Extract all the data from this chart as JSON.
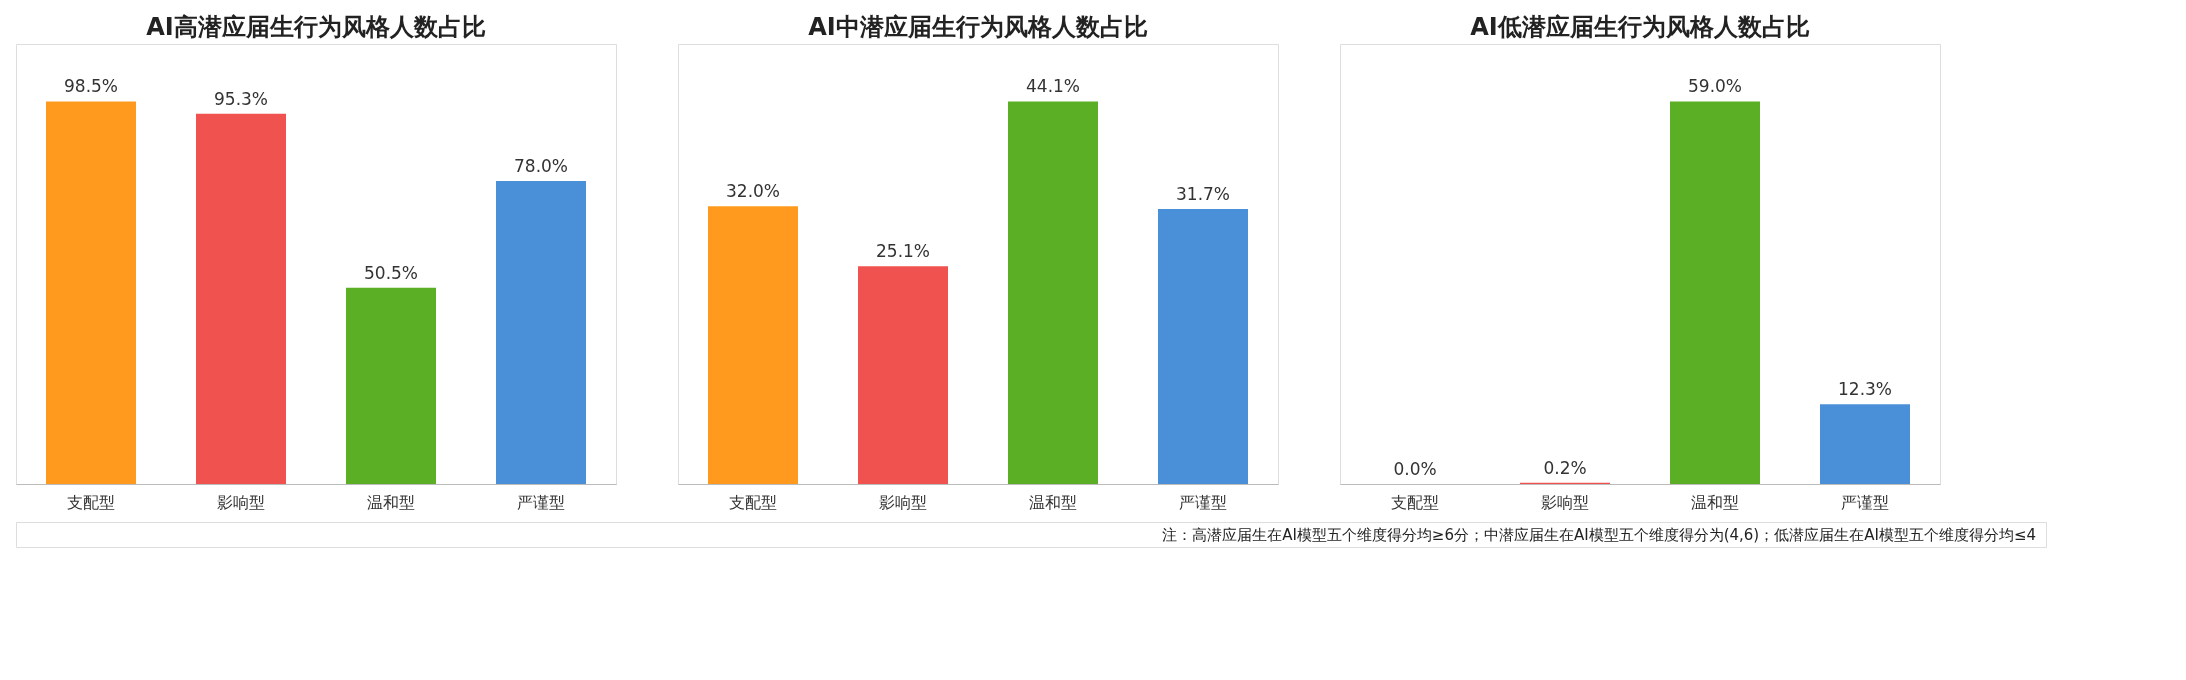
{
  "chart_data": [
    {
      "type": "bar",
      "title": "AI高潜应届生行为风格人数占比",
      "categories": [
        "支配型",
        "影响型",
        "温和型",
        "严谨型"
      ],
      "values": [
        98.5,
        95.3,
        50.5,
        78.0
      ],
      "colors": [
        "#ff9a1f",
        "#f0524f",
        "#5aaf25",
        "#4a90d9"
      ],
      "value_labels": [
        "98.5%",
        "95.3%",
        "50.5%",
        "78.0%"
      ],
      "grid": false,
      "legend": false
    },
    {
      "type": "bar",
      "title": "AI中潜应届生行为风格人数占比",
      "categories": [
        "支配型",
        "影响型",
        "温和型",
        "严谨型"
      ],
      "values": [
        32.0,
        25.1,
        44.1,
        31.7
      ],
      "colors": [
        "#ff9a1f",
        "#f0524f",
        "#5aaf25",
        "#4a90d9"
      ],
      "value_labels": [
        "32.0%",
        "25.1%",
        "44.1%",
        "31.7%"
      ],
      "grid": false,
      "legend": false
    },
    {
      "type": "bar",
      "title": "AI低潜应届生行为风格人数占比",
      "categories": [
        "支配型",
        "影响型",
        "温和型",
        "严谨型"
      ],
      "values": [
        0.0,
        0.2,
        59.0,
        12.3
      ],
      "colors": [
        "#ff9a1f",
        "#f0524f",
        "#5aaf25",
        "#4a90d9"
      ],
      "value_labels": [
        "0.0%",
        "0.2%",
        "59.0%",
        "12.3%"
      ],
      "grid": false,
      "legend": false,
      "annotations": [
        "注：高潜应届生在AI模型五个维度得分均≥6分；中潜应届生在AI模型五个维度得分为(4,6)；低潜应届生在AI模型五个维度得分均≤4"
      ]
    }
  ]
}
